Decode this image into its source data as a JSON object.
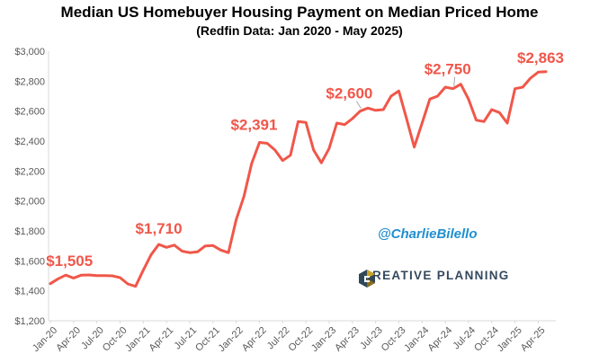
{
  "chart_data": {
    "type": "line",
    "title": "Median US Homebuyer Housing Payment on Median Priced Home",
    "subtitle": "(Redfin Data: Jan 2020 - May 2025)",
    "xlabel": "",
    "ylabel": "",
    "ylim": [
      1200,
      3000
    ],
    "yticks": [
      "$1,200",
      "$1,400",
      "$1,600",
      "$1,800",
      "$2,000",
      "$2,200",
      "$2,400",
      "$2,600",
      "$2,800",
      "$3,000"
    ],
    "grid": false,
    "x_tick_labels": [
      "Jan-20",
      "Apr-20",
      "Jul-20",
      "Oct-20",
      "Jan-21",
      "Apr-21",
      "Jul-21",
      "Oct-21",
      "Jan-22",
      "Apr-22",
      "Jul-22",
      "Oct-22",
      "Jan-23",
      "Apr-23",
      "Jul-23",
      "Oct-23",
      "Jan-24",
      "Apr-24",
      "Jul-24",
      "Oct-24",
      "Jan-25",
      "Apr-25"
    ],
    "series": [
      {
        "color": "#f0574a",
        "values": [
          1448,
          1480,
          1505,
          1485,
          1505,
          1506,
          1502,
          1502,
          1500,
          1488,
          1446,
          1430,
          1538,
          1640,
          1710,
          1690,
          1705,
          1665,
          1655,
          1660,
          1700,
          1702,
          1672,
          1655,
          1875,
          2030,
          2250,
          2391,
          2385,
          2340,
          2270,
          2305,
          2530,
          2525,
          2340,
          2255,
          2350,
          2520,
          2510,
          2550,
          2600,
          2620,
          2605,
          2610,
          2700,
          2735,
          2550,
          2360,
          2520,
          2680,
          2700,
          2760,
          2750,
          2780,
          2680,
          2540,
          2530,
          2610,
          2590,
          2520,
          2750,
          2760,
          2820,
          2860,
          2863
        ]
      }
    ],
    "annotations": [
      {
        "text": "$1,505",
        "index": 2
      },
      {
        "text": "$1,710",
        "index": 14
      },
      {
        "text": "$2,391",
        "index": 27
      },
      {
        "text": "$2,600",
        "index": 40
      },
      {
        "text": "$2,750",
        "index": 52
      },
      {
        "text": "$2,863",
        "index": 64
      }
    ]
  },
  "watermark": {
    "handle": "@CharlieBilello",
    "logo_text": "CREATIVE PLANNING"
  },
  "colors": {
    "line": "#f0574a",
    "annotation": "#f0574a",
    "handle": "#1f8fd0",
    "logo_text": "#34495e"
  }
}
